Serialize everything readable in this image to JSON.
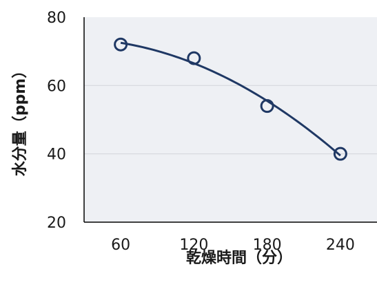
{
  "chart_data": {
    "type": "scatter",
    "xlabel": "乾燥時間（分）",
    "ylabel": "水分量（ppm）",
    "x_ticks": [
      "60",
      "120",
      "180",
      "240"
    ],
    "y_ticks": [
      "20",
      "40",
      "60",
      "80"
    ],
    "xlim": [
      30,
      270
    ],
    "ylim": [
      20,
      80
    ],
    "grid": true,
    "series": [
      {
        "x": [
          60,
          120,
          180,
          240
        ],
        "y": [
          72,
          68,
          54,
          40
        ],
        "trendline": "polynomial-2"
      }
    ],
    "colors": {
      "series": "#1f3864",
      "plot_bg": "#eef0f4",
      "grid": "#d4d7dd",
      "axis": "#000000"
    }
  }
}
